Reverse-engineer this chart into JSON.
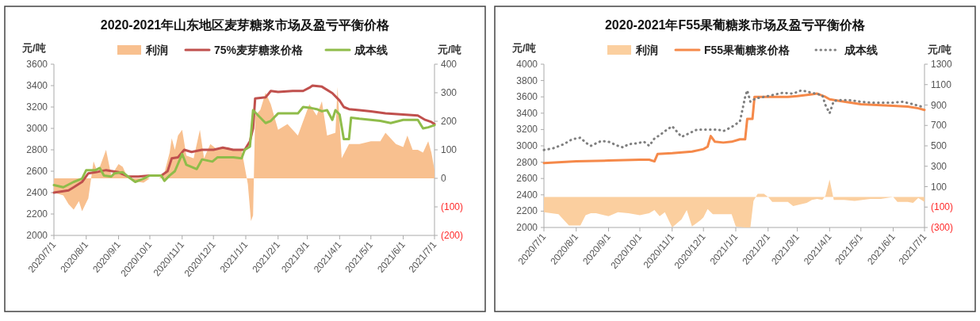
{
  "chart_data": [
    {
      "type": "line",
      "title": "2020-2021年山东地区麦芽糖浆市场及盈亏平衡价格",
      "ylabel": "元/吨",
      "y2label": "元/吨",
      "legend": "top",
      "xlim": [
        "2020-07-01",
        "2021-07-01"
      ],
      "xticks": [
        {
          "value": "2020-07-01",
          "label": "2020/7/1"
        },
        {
          "value": "2020-08-01",
          "label": "2020/8/1"
        },
        {
          "value": "2020-09-01",
          "label": "2020/9/1"
        },
        {
          "value": "2020-10-01",
          "label": "2020/10/1"
        },
        {
          "value": "2020-11-01",
          "label": "2020/11/1"
        },
        {
          "value": "2020-12-01",
          "label": "2020/12/1"
        },
        {
          "value": "2021-01-01",
          "label": "2021/1/1"
        },
        {
          "value": "2021-02-01",
          "label": "2021/2/1"
        },
        {
          "value": "2021-03-01",
          "label": "2021/3/1"
        },
        {
          "value": "2021-04-01",
          "label": "2021/4/1"
        },
        {
          "value": "2021-05-01",
          "label": "2021/5/1"
        },
        {
          "value": "2021-06-01",
          "label": "2021/6/1"
        },
        {
          "value": "2021-07-01",
          "label": "2021/7/1"
        }
      ],
      "ylim": [
        2000,
        3600
      ],
      "yticks": [
        2000,
        2200,
        2400,
        2600,
        2800,
        3000,
        3200,
        3400,
        3600
      ],
      "y2lim": [
        -200,
        400
      ],
      "y2ticks": [
        {
          "value": -200,
          "label": "(200)"
        },
        {
          "value": -100,
          "label": "(100)"
        },
        0,
        100,
        200,
        300,
        400
      ],
      "series": [
        {
          "name": "利润",
          "type": "area",
          "axis": "y2",
          "color": "#f8c08f",
          "x": [
            "2020-07-01",
            "2020-07-10",
            "2020-07-15",
            "2020-07-20",
            "2020-07-25",
            "2020-07-28",
            "2020-08-03",
            "2020-08-08",
            "2020-08-12",
            "2020-08-18",
            "2020-08-20",
            "2020-08-25",
            "2020-09-01",
            "2020-09-05",
            "2020-09-10",
            "2020-09-15",
            "2020-09-25",
            "2020-10-01",
            "2020-10-10",
            "2020-10-15",
            "2020-10-20",
            "2020-10-22",
            "2020-10-25",
            "2020-10-28",
            "2020-11-01",
            "2020-11-05",
            "2020-11-12",
            "2020-11-18",
            "2020-11-22",
            "2020-11-28",
            "2020-12-05",
            "2020-12-15",
            "2020-12-20",
            "2020-12-28",
            "2021-01-01",
            "2021-01-03",
            "2021-01-06",
            "2021-01-08",
            "2021-01-10",
            "2021-01-15",
            "2021-01-20",
            "2021-01-25",
            "2021-02-01",
            "2021-02-10",
            "2021-02-20",
            "2021-02-25",
            "2021-03-03",
            "2021-03-10",
            "2021-03-15",
            "2021-03-20",
            "2021-03-28",
            "2021-03-30",
            "2021-04-03",
            "2021-04-10",
            "2021-04-20",
            "2021-05-01",
            "2021-05-10",
            "2021-05-15",
            "2021-05-25",
            "2021-06-01",
            "2021-06-05",
            "2021-06-10",
            "2021-06-15",
            "2021-06-20",
            "2021-06-25",
            "2021-06-28",
            "2021-07-01"
          ],
          "values": [
            -50,
            -60,
            -90,
            -110,
            -80,
            -115,
            -70,
            60,
            20,
            80,
            100,
            10,
            50,
            40,
            0,
            -10,
            -15,
            0,
            0,
            20,
            90,
            140,
            100,
            150,
            170,
            80,
            70,
            170,
            70,
            120,
            100,
            110,
            100,
            100,
            20,
            -20,
            -150,
            -130,
            220,
            240,
            300,
            260,
            170,
            190,
            150,
            200,
            260,
            220,
            270,
            150,
            160,
            320,
            70,
            120,
            120,
            130,
            130,
            160,
            120,
            110,
            150,
            100,
            100,
            90,
            130,
            90,
            30
          ]
        },
        {
          "name": "75%麦芽糖浆价格",
          "type": "line",
          "color": "#c0504d",
          "x": [
            "2020-07-01",
            "2020-07-15",
            "2020-07-20",
            "2020-07-28",
            "2020-08-03",
            "2020-08-10",
            "2020-08-20",
            "2020-09-01",
            "2020-09-10",
            "2020-09-20",
            "2020-10-01",
            "2020-10-12",
            "2020-10-18",
            "2020-10-22",
            "2020-10-28",
            "2020-11-03",
            "2020-11-10",
            "2020-11-20",
            "2020-12-01",
            "2020-12-10",
            "2020-12-20",
            "2020-12-31",
            "2021-01-05",
            "2021-01-08",
            "2021-01-10",
            "2021-01-20",
            "2021-01-25",
            "2021-02-01",
            "2021-02-15",
            "2021-02-25",
            "2021-03-03",
            "2021-03-06",
            "2021-03-15",
            "2021-03-25",
            "2021-04-01",
            "2021-04-05",
            "2021-04-10",
            "2021-04-20",
            "2021-05-01",
            "2021-05-15",
            "2021-06-01",
            "2021-06-15",
            "2021-06-22",
            "2021-06-28",
            "2021-07-01"
          ],
          "values": [
            2400,
            2420,
            2450,
            2500,
            2580,
            2590,
            2610,
            2590,
            2550,
            2550,
            2560,
            2560,
            2600,
            2720,
            2730,
            2800,
            2780,
            2800,
            2800,
            2820,
            2800,
            2800,
            2880,
            3000,
            3280,
            3290,
            3350,
            3340,
            3350,
            3350,
            3380,
            3400,
            3390,
            3330,
            3260,
            3200,
            3180,
            3170,
            3160,
            3140,
            3130,
            3120,
            3080,
            3060,
            3040
          ]
        },
        {
          "name": "成本线",
          "type": "line",
          "color": "#8fbc4a",
          "x": [
            "2020-07-01",
            "2020-07-10",
            "2020-07-20",
            "2020-07-28",
            "2020-08-01",
            "2020-08-10",
            "2020-08-14",
            "2020-08-18",
            "2020-08-25",
            "2020-08-28",
            "2020-09-05",
            "2020-09-10",
            "2020-09-17",
            "2020-09-25",
            "2020-10-01",
            "2020-10-12",
            "2020-10-15",
            "2020-10-20",
            "2020-10-25",
            "2020-11-01",
            "2020-11-05",
            "2020-11-15",
            "2020-11-20",
            "2020-11-30",
            "2020-12-05",
            "2020-12-20",
            "2020-12-28",
            "2020-12-31",
            "2021-01-05",
            "2021-01-08",
            "2021-01-10",
            "2021-01-20",
            "2021-01-25",
            "2021-02-01",
            "2021-02-20",
            "2021-02-25",
            "2021-03-05",
            "2021-03-10",
            "2021-03-15",
            "2021-03-20",
            "2021-03-25",
            "2021-03-28",
            "2021-04-01",
            "2021-04-05",
            "2021-04-10",
            "2021-04-12",
            "2021-04-20",
            "2021-05-01",
            "2021-05-10",
            "2021-05-20",
            "2021-06-01",
            "2021-06-15",
            "2021-06-20",
            "2021-06-25",
            "2021-07-01"
          ],
          "values": [
            2470,
            2450,
            2500,
            2530,
            2610,
            2610,
            2630,
            2560,
            2550,
            2580,
            2590,
            2550,
            2500,
            2530,
            2560,
            2560,
            2510,
            2560,
            2600,
            2760,
            2660,
            2620,
            2710,
            2690,
            2730,
            2730,
            2720,
            2800,
            2830,
            3170,
            3150,
            3050,
            3070,
            3140,
            3140,
            3200,
            3190,
            3180,
            3160,
            3170,
            3080,
            3170,
            3130,
            2900,
            2900,
            3100,
            3090,
            3080,
            3070,
            3050,
            3080,
            3080,
            3000,
            3010,
            3030
          ]
        }
      ]
    },
    {
      "type": "line",
      "title": "2020-2021年F55果葡糖浆市场及盈亏平衡价格",
      "ylabel": "元/吨",
      "y2label": "元/吨",
      "legend": "top",
      "xlim": [
        "2020-07-01",
        "2021-07-01"
      ],
      "xticks": [
        {
          "value": "2020-07-01",
          "label": "2020/7/1"
        },
        {
          "value": "2020-08-01",
          "label": "2020/8/1"
        },
        {
          "value": "2020-09-01",
          "label": "2020/9/1"
        },
        {
          "value": "2020-10-01",
          "label": "2020/10/1"
        },
        {
          "value": "2020-11-01",
          "label": "2020/11/1"
        },
        {
          "value": "2020-12-01",
          "label": "2020/12/1"
        },
        {
          "value": "2021-01-01",
          "label": "2021/1/1"
        },
        {
          "value": "2021-02-01",
          "label": "2021/2/1"
        },
        {
          "value": "2021-03-01",
          "label": "2021/3/1"
        },
        {
          "value": "2021-04-01",
          "label": "2021/4/1"
        },
        {
          "value": "2021-05-01",
          "label": "2021/5/1"
        },
        {
          "value": "2021-06-01",
          "label": "2021/6/1"
        },
        {
          "value": "2021-07-01",
          "label": "2021/7/1"
        }
      ],
      "ylim": [
        2000,
        4000
      ],
      "yticks": [
        2000,
        2200,
        2400,
        2600,
        2800,
        3000,
        3200,
        3400,
        3600,
        3800,
        4000
      ],
      "y2lim": [
        -300,
        1300
      ],
      "y2ticks": [
        {
          "value": -300,
          "label": "(300)"
        },
        {
          "value": -100,
          "label": "(100)"
        },
        100,
        300,
        500,
        700,
        900,
        1100,
        1300
      ],
      "series": [
        {
          "name": "利润",
          "type": "area",
          "axis": "y2",
          "color": "#fbcf9f",
          "x": [
            "2020-07-01",
            "2020-07-15",
            "2020-07-25",
            "2020-08-05",
            "2020-08-10",
            "2020-08-15",
            "2020-08-20",
            "2020-09-01",
            "2020-09-10",
            "2020-09-20",
            "2020-10-01",
            "2020-10-10",
            "2020-10-15",
            "2020-10-20",
            "2020-10-25",
            "2020-11-01",
            "2020-11-10",
            "2020-11-15",
            "2020-11-20",
            "2020-11-28",
            "2020-12-01",
            "2020-12-05",
            "2020-12-10",
            "2020-12-20",
            "2020-12-28",
            "2021-01-01",
            "2021-01-10",
            "2021-01-15",
            "2021-01-18",
            "2021-01-22",
            "2021-01-28",
            "2021-02-01",
            "2021-02-05",
            "2021-02-20",
            "2021-02-25",
            "2021-03-01",
            "2021-03-10",
            "2021-03-15",
            "2021-03-20",
            "2021-03-25",
            "2021-03-28",
            "2021-04-01",
            "2021-04-05",
            "2021-04-15",
            "2021-04-25",
            "2021-05-10",
            "2021-05-20",
            "2021-06-01",
            "2021-06-05",
            "2021-06-15",
            "2021-06-20",
            "2021-06-25",
            "2021-07-01"
          ],
          "values": [
            -150,
            -170,
            -280,
            -280,
            -180,
            -160,
            -160,
            -190,
            -150,
            -160,
            -180,
            -160,
            -130,
            -190,
            -150,
            -300,
            -220,
            -130,
            -290,
            -230,
            -200,
            -120,
            -170,
            -170,
            -170,
            -290,
            -300,
            -300,
            -40,
            30,
            30,
            0,
            -50,
            -50,
            -90,
            -80,
            -60,
            -30,
            -20,
            -30,
            10,
            170,
            -30,
            -30,
            -40,
            -20,
            -20,
            0,
            -50,
            -50,
            -60,
            -10,
            -50
          ]
        },
        {
          "name": "F55果葡糖浆价格",
          "type": "line",
          "color": "#f5894a",
          "x": [
            "2020-07-01",
            "2020-08-01",
            "2020-09-01",
            "2020-10-01",
            "2020-10-10",
            "2020-10-15",
            "2020-10-18",
            "2020-11-01",
            "2020-11-20",
            "2020-12-01",
            "2020-12-05",
            "2020-12-08",
            "2020-12-12",
            "2020-12-20",
            "2020-12-28",
            "2021-01-05",
            "2021-01-10",
            "2021-01-12",
            "2021-01-17",
            "2021-01-19",
            "2021-02-01",
            "2021-02-20",
            "2021-03-01",
            "2021-03-15",
            "2021-03-20",
            "2021-03-28",
            "2021-04-01",
            "2021-04-10",
            "2021-05-01",
            "2021-06-01",
            "2021-06-15",
            "2021-06-25",
            "2021-07-01"
          ],
          "values": [
            2790,
            2810,
            2820,
            2830,
            2830,
            2810,
            2900,
            2910,
            2930,
            2960,
            2990,
            3120,
            3050,
            3040,
            3050,
            3080,
            3080,
            3330,
            3330,
            3600,
            3600,
            3600,
            3610,
            3630,
            3640,
            3600,
            3570,
            3550,
            3510,
            3490,
            3480,
            3460,
            3440
          ]
        },
        {
          "name": "成本线",
          "type": "line",
          "line_style": "dotted",
          "color": "#7f7f7f",
          "x": [
            "2020-07-01",
            "2020-07-10",
            "2020-07-20",
            "2020-07-28",
            "2020-08-05",
            "2020-08-10",
            "2020-08-15",
            "2020-08-20",
            "2020-08-25",
            "2020-09-01",
            "2020-09-10",
            "2020-09-15",
            "2020-09-20",
            "2020-09-28",
            "2020-10-05",
            "2020-10-10",
            "2020-10-15",
            "2020-10-20",
            "2020-10-25",
            "2020-11-01",
            "2020-11-10",
            "2020-11-20",
            "2020-11-25",
            "2020-12-05",
            "2020-12-15",
            "2020-12-20",
            "2020-12-28",
            "2021-01-05",
            "2021-01-10",
            "2021-01-12",
            "2021-01-15",
            "2021-01-20",
            "2021-02-01",
            "2021-02-15",
            "2021-02-25",
            "2021-03-05",
            "2021-03-15",
            "2021-03-25",
            "2021-03-28",
            "2021-04-01",
            "2021-04-05",
            "2021-04-10",
            "2021-04-20",
            "2021-05-01",
            "2021-05-10",
            "2021-05-20",
            "2021-06-01",
            "2021-06-10",
            "2021-06-20",
            "2021-07-01"
          ],
          "values": [
            2950,
            2970,
            3020,
            3080,
            3100,
            3040,
            3000,
            3030,
            3060,
            3050,
            3000,
            2980,
            3020,
            3030,
            3050,
            3000,
            3090,
            3130,
            3180,
            3240,
            3110,
            3170,
            3200,
            3200,
            3200,
            3180,
            3230,
            3300,
            3600,
            3680,
            3540,
            3580,
            3610,
            3650,
            3640,
            3680,
            3650,
            3620,
            3500,
            3400,
            3550,
            3560,
            3560,
            3540,
            3530,
            3530,
            3530,
            3540,
            3510,
            3470
          ]
        }
      ]
    }
  ]
}
